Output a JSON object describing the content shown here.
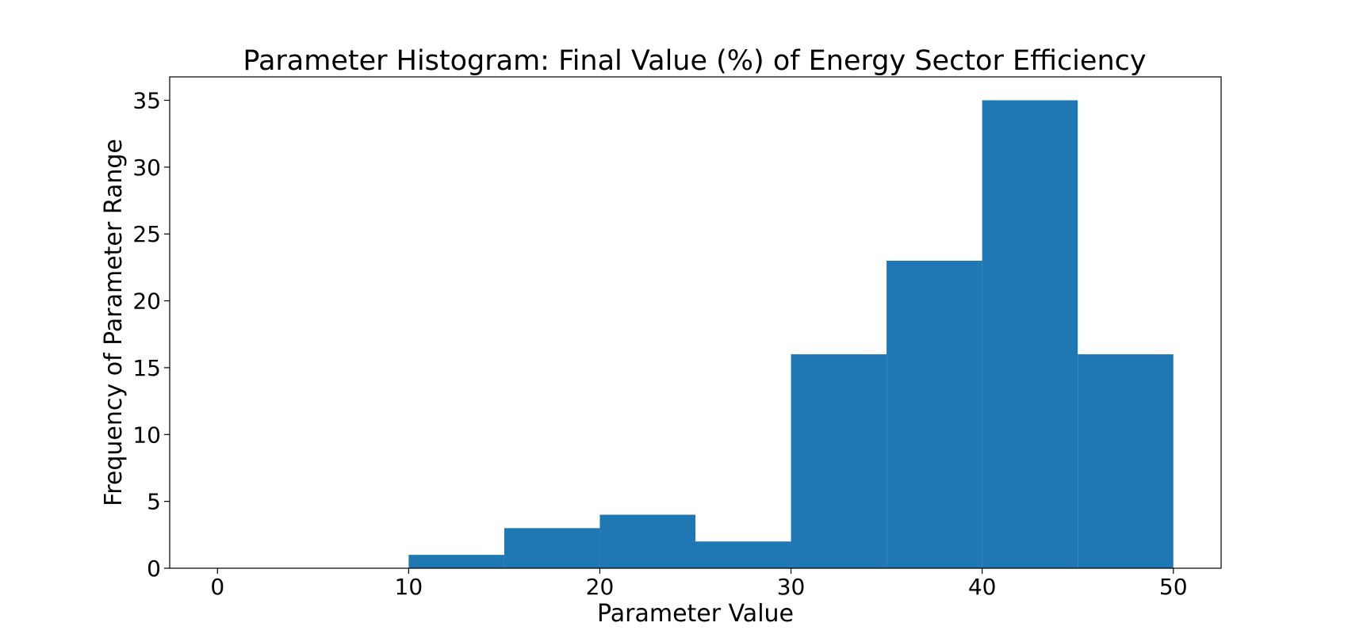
{
  "chart_data": {
    "type": "bar",
    "title": "Parameter Histogram: Final Value (%) of Energy Sector Efficiency",
    "xlabel": "Parameter Value",
    "ylabel": "Frequency of Parameter Range",
    "xlim": [
      -2.5,
      52.5
    ],
    "ylim": [
      0,
      36.75
    ],
    "bar_color": "#1f77b4",
    "bins": [
      {
        "start": 10,
        "end": 15,
        "count": 1
      },
      {
        "start": 15,
        "end": 20,
        "count": 3
      },
      {
        "start": 20,
        "end": 25,
        "count": 4
      },
      {
        "start": 25,
        "end": 30,
        "count": 2
      },
      {
        "start": 30,
        "end": 35,
        "count": 16
      },
      {
        "start": 35,
        "end": 40,
        "count": 23
      },
      {
        "start": 40,
        "end": 45,
        "count": 35
      },
      {
        "start": 45,
        "end": 50,
        "count": 16
      }
    ],
    "x_ticks": [
      0,
      10,
      20,
      30,
      40,
      50
    ],
    "x_tick_labels": [
      "0",
      "10",
      "20",
      "30",
      "40",
      "50"
    ],
    "y_ticks": [
      0,
      5,
      10,
      15,
      20,
      25,
      30,
      35
    ],
    "y_tick_labels": [
      "0",
      "5",
      "10",
      "15",
      "20",
      "25",
      "30",
      "35"
    ],
    "grid": false,
    "legend": "none"
  }
}
